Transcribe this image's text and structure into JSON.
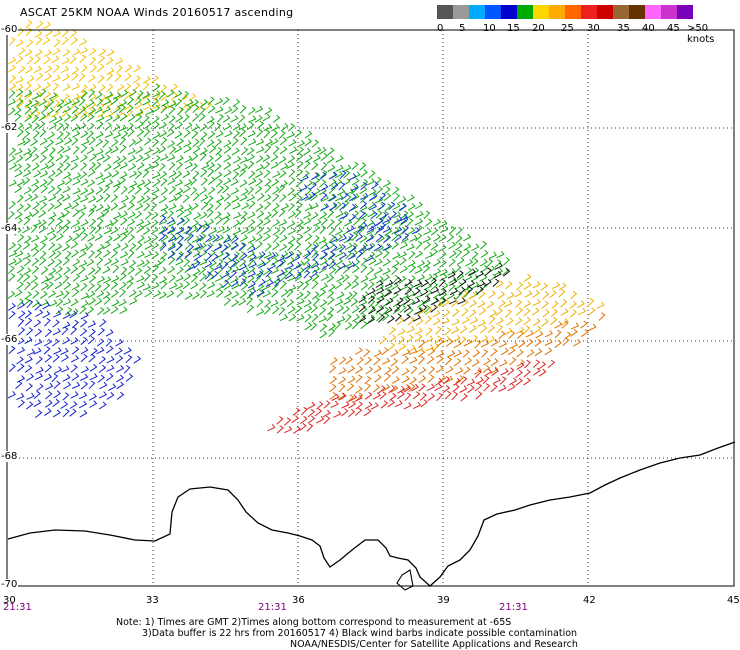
{
  "header": {
    "title": "ASCAT 25KM NOAA Winds 20160517 ascending"
  },
  "legend": {
    "swatches": [
      "#555555",
      "#999999",
      "#00aaff",
      "#0055ff",
      "#0000cc",
      "#00aa00",
      "#ffd700",
      "#ffaa00",
      "#ff6600",
      "#ee2020",
      "#cc0000",
      "#996633",
      "#663300",
      "#ff66ff",
      "#cc33cc",
      "#7700bb"
    ],
    "labels": [
      "0",
      "5",
      "10",
      "15",
      "20",
      "25",
      "30",
      "35",
      "40",
      "45",
      ">50 knots"
    ]
  },
  "map": {
    "lat_labels": [
      "-60",
      "-62",
      "-64",
      "-66",
      "-68",
      "-70"
    ],
    "lon_labels": [
      "30",
      "33",
      "36",
      "39",
      "42",
      "45"
    ],
    "time_labels": [
      "21:31",
      "21:31",
      "21:31"
    ]
  },
  "notes": {
    "line1": "Note: 1) Times are GMT 2)Times along bottom correspond to measurement at -65S",
    "line2": "3)Data buffer is 22 hrs from 20160517 4) Black wind barbs indicate possible contamination",
    "line3": "NOAA/NESDIS/Center for Satellite Applications and Research"
  }
}
